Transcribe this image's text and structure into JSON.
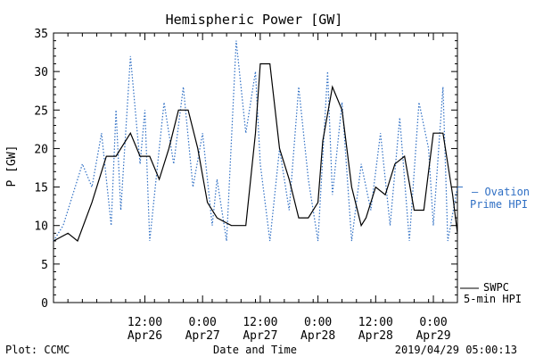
{
  "chart_data": {
    "type": "line",
    "title": "Hemispheric Power [GW]",
    "ylabel": "P [GW]",
    "xlabel": "Date and Time",
    "ylim": [
      0,
      35
    ],
    "yticks": [
      0,
      5,
      10,
      15,
      20,
      25,
      30,
      35
    ],
    "x_range": [
      "2019-04-25T17:00",
      "2019-04-29T05:00"
    ],
    "x_ticks": [
      {
        "t": "2019-04-26T12:00",
        "line1": "12:00",
        "line2": "Apr26"
      },
      {
        "t": "2019-04-27T00:00",
        "line1": "0:00",
        "line2": "Apr27"
      },
      {
        "t": "2019-04-27T12:00",
        "line1": "12:00",
        "line2": "Apr27"
      },
      {
        "t": "2019-04-28T00:00",
        "line1": "0:00",
        "line2": "Apr28"
      },
      {
        "t": "2019-04-28T12:00",
        "line1": "12:00",
        "line2": "Apr28"
      },
      {
        "t": "2019-04-29T00:00",
        "line1": "0:00",
        "line2": "Apr29"
      }
    ],
    "series": [
      {
        "name": "SWPC 5-min HPI",
        "style": "solid",
        "color": "#000000",
        "x": [
          "2019-04-25T17:00",
          "2019-04-25T20:00",
          "2019-04-25T22:00",
          "2019-04-26T01:00",
          "2019-04-26T04:00",
          "2019-04-26T06:00",
          "2019-04-26T09:00",
          "2019-04-26T11:00",
          "2019-04-26T13:00",
          "2019-04-26T15:00",
          "2019-04-26T17:00",
          "2019-04-26T19:00",
          "2019-04-26T21:00",
          "2019-04-26T23:00",
          "2019-04-27T01:00",
          "2019-04-27T03:00",
          "2019-04-27T06:00",
          "2019-04-27T09:00",
          "2019-04-27T11:00",
          "2019-04-27T12:00",
          "2019-04-27T14:00",
          "2019-04-27T16:00",
          "2019-04-27T18:00",
          "2019-04-27T20:00",
          "2019-04-27T22:00",
          "2019-04-28T00:00",
          "2019-04-28T01:00",
          "2019-04-28T03:00",
          "2019-04-28T05:00",
          "2019-04-28T07:00",
          "2019-04-28T09:00",
          "2019-04-28T10:00",
          "2019-04-28T12:00",
          "2019-04-28T14:00",
          "2019-04-28T16:00",
          "2019-04-28T18:00",
          "2019-04-28T20:00",
          "2019-04-28T21:00",
          "2019-04-28T22:00",
          "2019-04-28T23:00",
          "2019-04-29T00:00",
          "2019-04-29T02:00",
          "2019-04-29T03:00",
          "2019-04-29T04:00",
          "2019-04-29T05:00"
        ],
        "y": [
          8,
          9,
          8,
          13,
          19,
          19,
          22,
          19,
          19,
          16,
          20,
          25,
          25,
          20,
          13,
          11,
          10,
          10,
          22,
          31,
          31,
          20,
          16,
          11,
          11,
          13,
          21,
          28,
          25,
          15,
          10,
          11,
          15,
          14,
          18,
          19,
          12,
          12,
          12,
          17,
          22,
          22,
          18,
          14,
          9
        ]
      },
      {
        "name": "Ovation Prime HPI",
        "style": "dotted",
        "color": "#2f6fc4",
        "x": [
          "2019-04-25T17:00",
          "2019-04-25T19:00",
          "2019-04-25T21:00",
          "2019-04-25T23:00",
          "2019-04-26T01:00",
          "2019-04-26T03:00",
          "2019-04-26T05:00",
          "2019-04-26T06:00",
          "2019-04-26T07:00",
          "2019-04-26T09:00",
          "2019-04-26T11:00",
          "2019-04-26T12:00",
          "2019-04-26T13:00",
          "2019-04-26T15:00",
          "2019-04-26T16:00",
          "2019-04-26T18:00",
          "2019-04-26T20:00",
          "2019-04-26T22:00",
          "2019-04-27T00:00",
          "2019-04-27T02:00",
          "2019-04-27T03:00",
          "2019-04-27T05:00",
          "2019-04-27T07:00",
          "2019-04-27T09:00",
          "2019-04-27T11:00",
          "2019-04-27T12:00",
          "2019-04-27T14:00",
          "2019-04-27T16:00",
          "2019-04-27T18:00",
          "2019-04-27T20:00",
          "2019-04-27T22:00",
          "2019-04-28T00:00",
          "2019-04-28T02:00",
          "2019-04-28T03:00",
          "2019-04-28T05:00",
          "2019-04-28T07:00",
          "2019-04-28T09:00",
          "2019-04-28T11:00",
          "2019-04-28T13:00",
          "2019-04-28T15:00",
          "2019-04-28T17:00",
          "2019-04-28T19:00",
          "2019-04-28T21:00",
          "2019-04-28T23:00",
          "2019-04-29T00:00",
          "2019-04-29T02:00",
          "2019-04-29T03:00",
          "2019-04-29T05:00"
        ],
        "y": [
          8,
          10,
          14,
          18,
          15,
          22,
          10,
          25,
          12,
          32,
          18,
          25,
          8,
          20,
          26,
          18,
          28,
          15,
          22,
          10,
          16,
          8,
          34,
          22,
          30,
          18,
          8,
          20,
          12,
          28,
          16,
          8,
          30,
          14,
          26,
          8,
          18,
          12,
          22,
          10,
          24,
          8,
          26,
          20,
          10,
          28,
          8,
          15
        ]
      }
    ]
  },
  "legend": {
    "ovation_line1": "— Ovation",
    "ovation_line2": "Prime HPI",
    "swpc_line1": "SWPC",
    "swpc_line2": "5-min HPI"
  },
  "footer": {
    "left": "Plot: CCMC",
    "right": "2019/04/29 05:00:13"
  },
  "colors": {
    "ovation": "#2f6fc4",
    "swpc": "#000000"
  }
}
